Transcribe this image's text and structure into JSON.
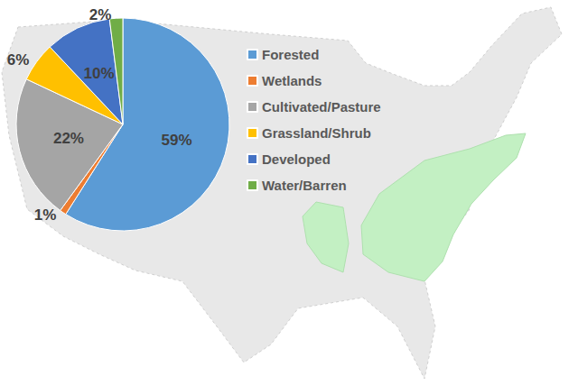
{
  "chart_data": {
    "type": "pie",
    "categories": [
      "Forested",
      "Wetlands",
      "Cultivated/Pasture",
      "Grassland/Shrub",
      "Developed",
      "Water/Barren"
    ],
    "values": [
      59,
      1,
      22,
      6,
      10,
      2
    ],
    "value_labels": [
      "59%",
      "1%",
      "22%",
      "6%",
      "10%",
      "2%"
    ],
    "colors": [
      "#5b9bd5",
      "#ed7d31",
      "#a5a5a5",
      "#ffc000",
      "#4472c4",
      "#70ad47"
    ],
    "legend": "right",
    "data_labels": true
  }
}
